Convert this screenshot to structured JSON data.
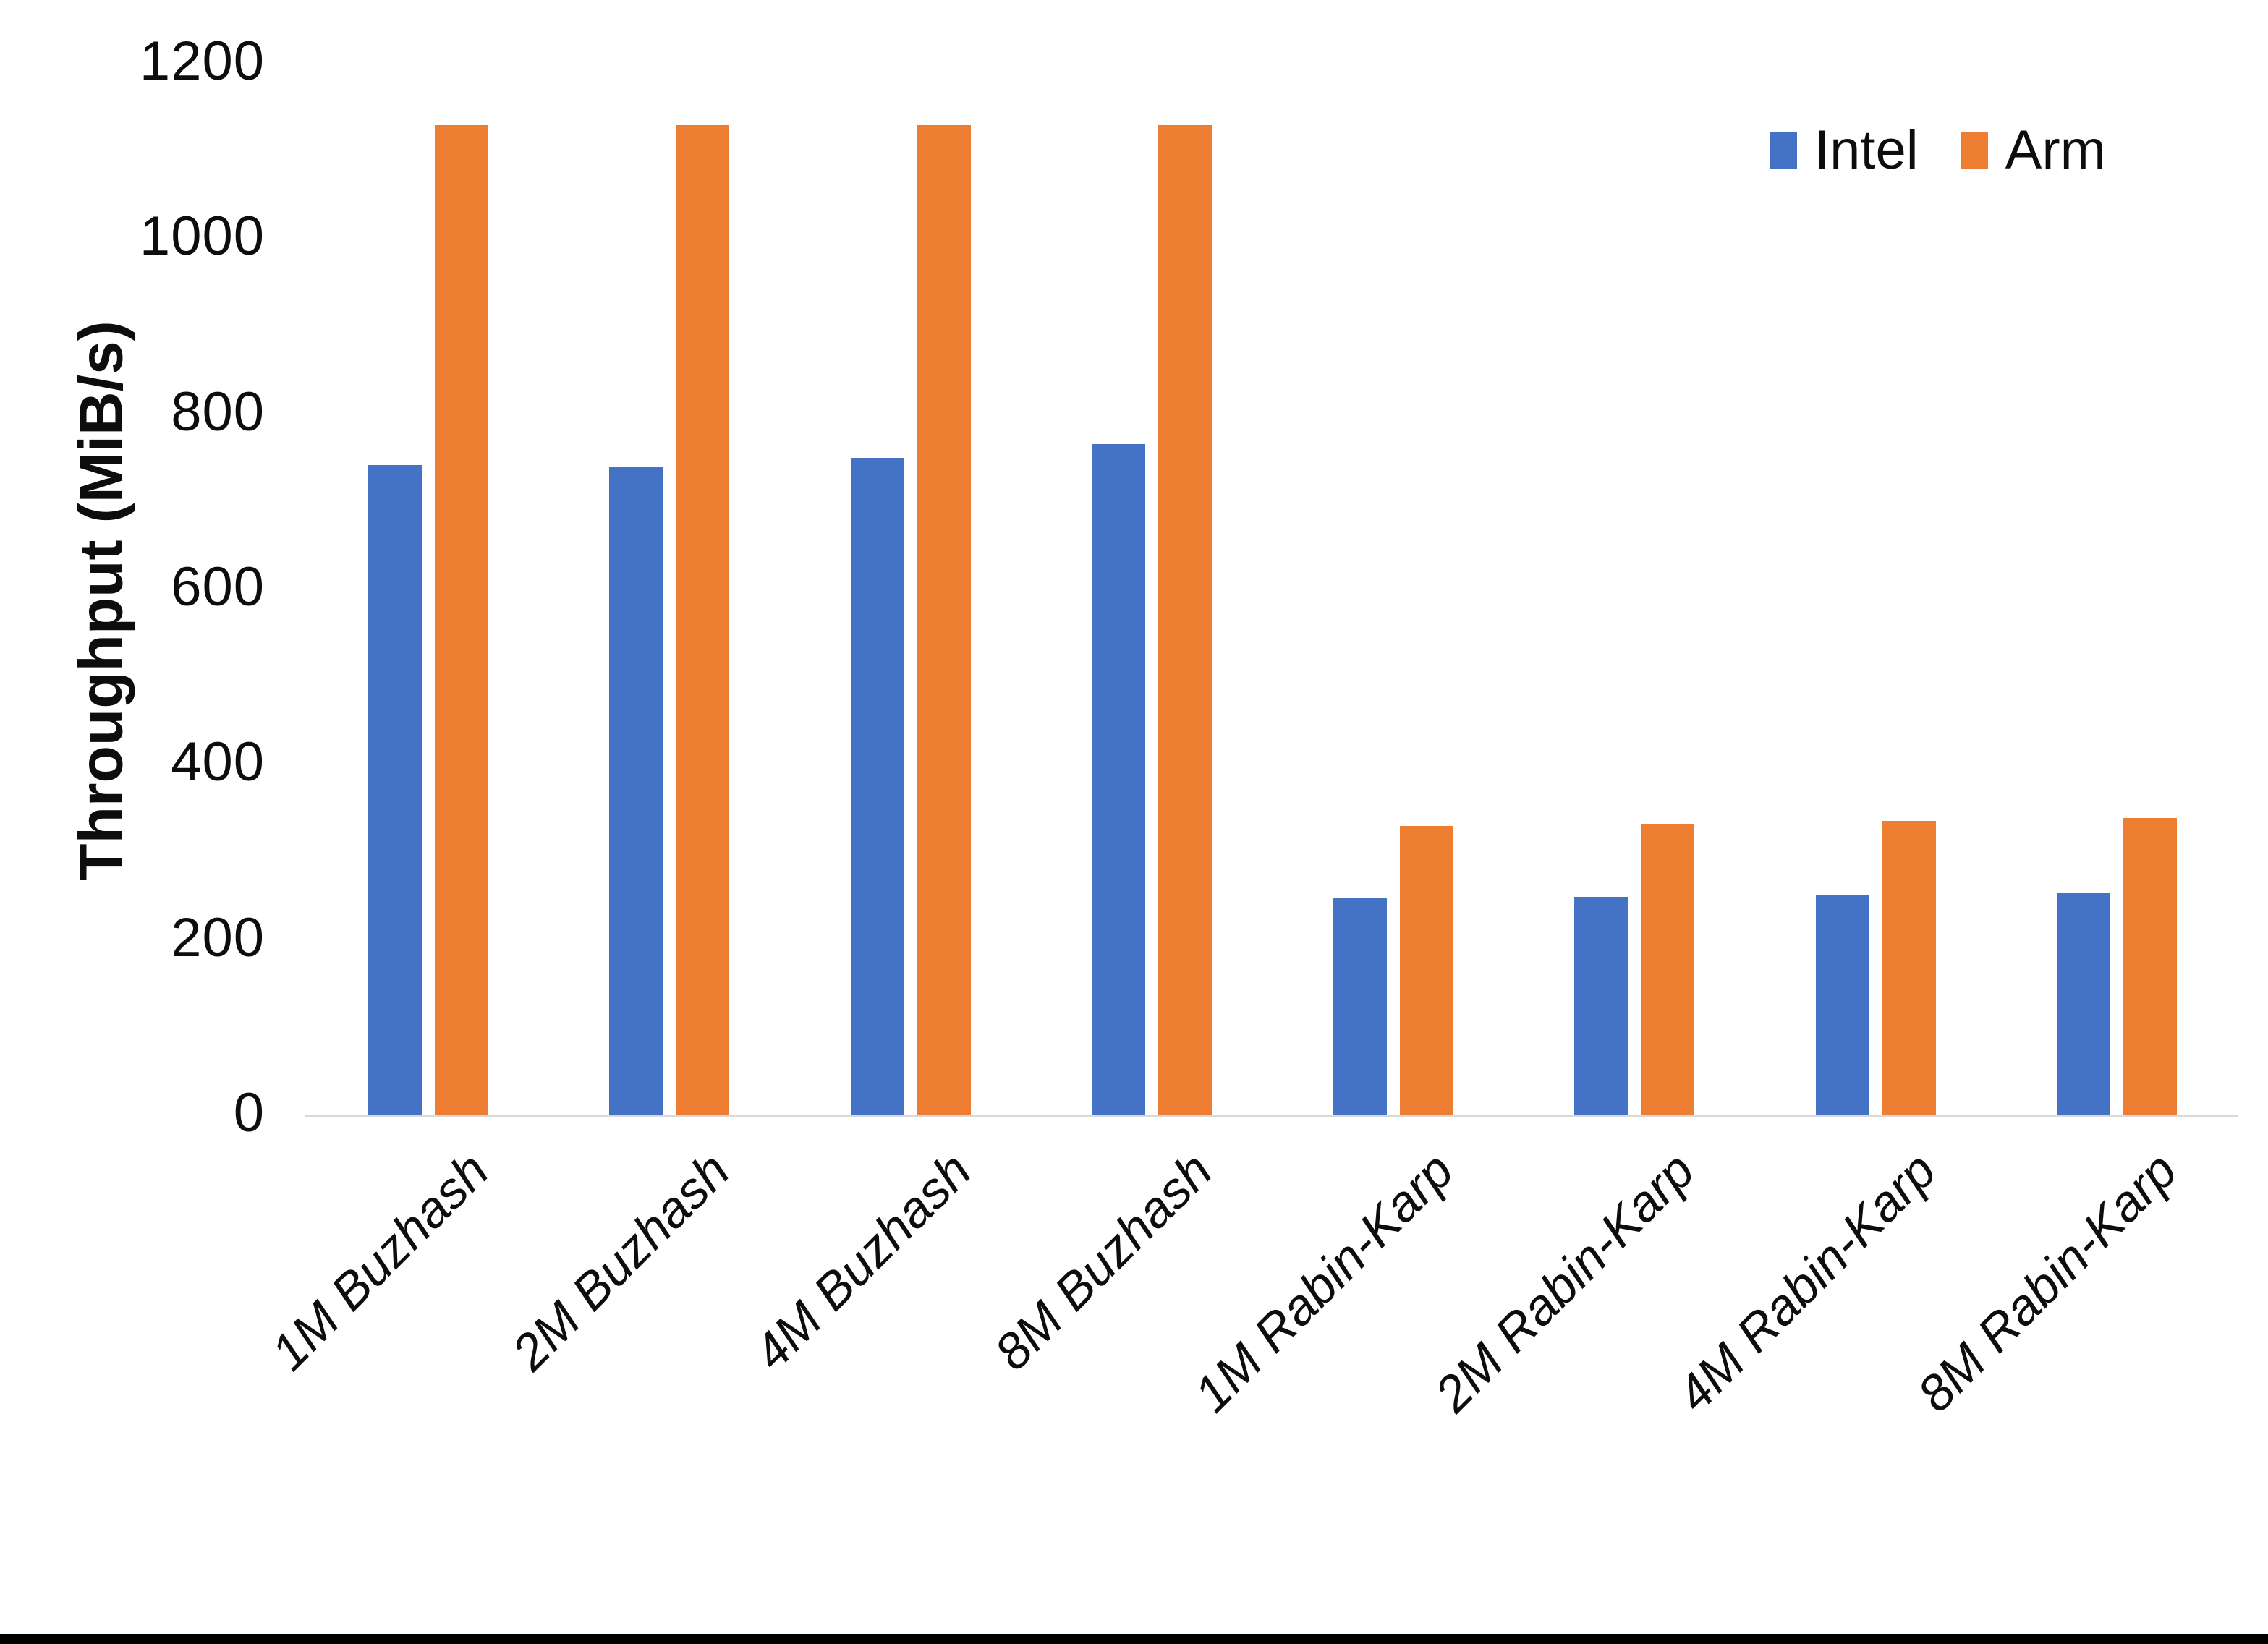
{
  "chart_data": {
    "type": "bar",
    "title": "",
    "xlabel": "",
    "ylabel": "Throughput (MiB/s)",
    "ylim": [
      0,
      1200
    ],
    "yticks": [
      0,
      200,
      400,
      600,
      800,
      1000,
      1200
    ],
    "grid": false,
    "legend_position": "top-right",
    "categories": [
      "1M Buzhash",
      "2M Buzhash",
      "4M Buzhash",
      "8M Buzhash",
      "1M Rabin-Karp",
      "2M Rabin-Karp",
      "4M Rabin-Karp",
      "8M Rabin-Karp"
    ],
    "series": [
      {
        "name": "Intel",
        "color": "#4472C4",
        "values": [
          742,
          740,
          750,
          766,
          248,
          249,
          252,
          254
        ]
      },
      {
        "name": "Arm",
        "color": "#ED7D31",
        "values": [
          1130,
          1130,
          1130,
          1130,
          330,
          333,
          336,
          339
        ]
      }
    ]
  },
  "legend": {
    "items": [
      {
        "label": "Intel",
        "color": "#4472C4"
      },
      {
        "label": "Arm",
        "color": "#ED7D31"
      }
    ]
  },
  "axis_colors": {
    "baseline": "#d9d9d9",
    "text": "#0d0d0d"
  },
  "frame": {
    "bottom_border_color": "#000000"
  }
}
